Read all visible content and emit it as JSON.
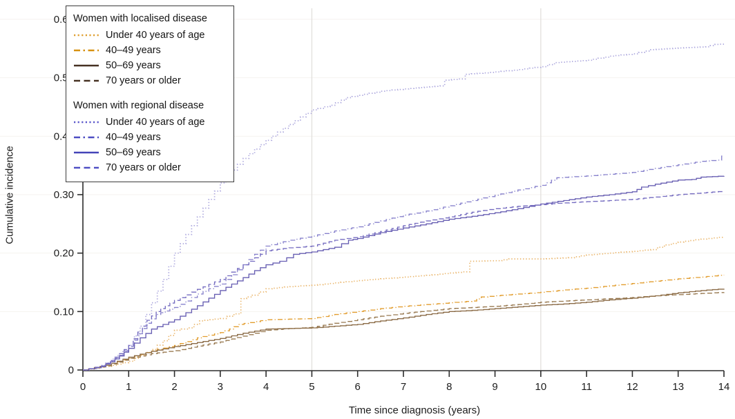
{
  "chart_data": {
    "type": "line",
    "title": "",
    "xlabel": "Time since diagnosis (years)",
    "ylabel": "Cumulative incidence",
    "xlim": [
      0,
      14
    ],
    "ylim": [
      0,
      0.6
    ],
    "x_ticks": [
      "0",
      "1",
      "2",
      "3",
      "4",
      "5",
      "6",
      "7",
      "8",
      "9",
      "10",
      "11",
      "12",
      "13",
      "14"
    ],
    "y_ticks": [
      {
        "v": 0,
        "label": "0"
      },
      {
        "v": 0.1,
        "label": "0.10"
      },
      {
        "v": 0.2,
        "label": "0.20"
      },
      {
        "v": 0.3,
        "label": "0.30"
      },
      {
        "v": 0.4,
        "label": "0.40"
      },
      {
        "v": 0.5,
        "label": "0.50"
      },
      {
        "v": 0.6,
        "label": "0.60"
      }
    ],
    "grid": {
      "vertical_lines_x": [
        5,
        10
      ],
      "vertical_color": "#e3e1de",
      "horizontal_lines_y": [
        0.1,
        0.2,
        0.3,
        0.4,
        0.5,
        0.6
      ],
      "horizontal_color": "#f4f2ef"
    },
    "axis_color": "#2b2b2b",
    "legend": {
      "position": "top-left",
      "groups": [
        {
          "title": "Women with localised disease"
        },
        {
          "title": "Women with regional disease"
        }
      ]
    },
    "series": [
      {
        "id": "localised-under-40",
        "group": 0,
        "label": "Under 40 years of age",
        "dash": "dotted",
        "color": "#eab66c",
        "legend_color": "#dfa032",
        "points": [
          [
            0,
            0
          ],
          [
            0.5,
            0.006
          ],
          [
            0.75,
            0.01
          ],
          [
            1,
            0.015
          ],
          [
            1.25,
            0.025
          ],
          [
            1.5,
            0.035
          ],
          [
            1.75,
            0.05
          ],
          [
            2,
            0.068
          ],
          [
            2.3,
            0.072
          ],
          [
            2.55,
            0.084
          ],
          [
            3,
            0.088
          ],
          [
            3.3,
            0.096
          ],
          [
            3.45,
            0.122
          ],
          [
            3.7,
            0.128
          ],
          [
            4,
            0.139
          ],
          [
            4.4,
            0.142
          ],
          [
            5,
            0.145
          ],
          [
            5.5,
            0.149
          ],
          [
            6,
            0.153
          ],
          [
            6.5,
            0.156
          ],
          [
            7,
            0.159
          ],
          [
            7.5,
            0.162
          ],
          [
            8,
            0.166
          ],
          [
            8.3,
            0.168
          ],
          [
            8.45,
            0.186
          ],
          [
            9,
            0.187
          ],
          [
            9.3,
            0.19
          ],
          [
            10,
            0.19
          ],
          [
            10.6,
            0.192
          ],
          [
            11,
            0.197
          ],
          [
            11.5,
            0.2
          ],
          [
            12,
            0.203
          ],
          [
            12.4,
            0.206
          ],
          [
            12.7,
            0.214
          ],
          [
            13,
            0.219
          ],
          [
            13.5,
            0.224
          ],
          [
            14,
            0.228
          ]
        ]
      },
      {
        "id": "localised-40-49",
        "group": 0,
        "label": "40–49 years",
        "dash": "dashdot",
        "color": "#e29d2e",
        "legend_color": "#d79110",
        "points": [
          [
            0,
            0
          ],
          [
            0.5,
            0.008
          ],
          [
            1,
            0.02
          ],
          [
            1.5,
            0.033
          ],
          [
            2,
            0.042
          ],
          [
            2.5,
            0.055
          ],
          [
            3,
            0.064
          ],
          [
            3.2,
            0.07
          ],
          [
            3.4,
            0.078
          ],
          [
            4,
            0.086
          ],
          [
            4.5,
            0.087
          ],
          [
            5,
            0.088
          ],
          [
            5.5,
            0.095
          ],
          [
            6,
            0.1
          ],
          [
            6.5,
            0.105
          ],
          [
            7,
            0.109
          ],
          [
            7.5,
            0.112
          ],
          [
            8,
            0.115
          ],
          [
            8.5,
            0.118
          ],
          [
            8.7,
            0.125
          ],
          [
            9,
            0.127
          ],
          [
            9.5,
            0.13
          ],
          [
            10,
            0.133
          ],
          [
            10.5,
            0.137
          ],
          [
            11,
            0.14
          ],
          [
            11.5,
            0.144
          ],
          [
            12,
            0.148
          ],
          [
            12.5,
            0.152
          ],
          [
            13,
            0.156
          ],
          [
            13.5,
            0.159
          ],
          [
            14,
            0.163
          ]
        ]
      },
      {
        "id": "localised-50-69",
        "group": 0,
        "label": "50–69 years",
        "dash": "solid",
        "color": "#8a6a45",
        "legend_color": "#463122",
        "points": [
          [
            0,
            0
          ],
          [
            0.5,
            0.008
          ],
          [
            1,
            0.022
          ],
          [
            1.5,
            0.032
          ],
          [
            2,
            0.04
          ],
          [
            2.5,
            0.047
          ],
          [
            3,
            0.054
          ],
          [
            3.5,
            0.063
          ],
          [
            4,
            0.07
          ],
          [
            4.5,
            0.071
          ],
          [
            5,
            0.072
          ],
          [
            5.5,
            0.075
          ],
          [
            6,
            0.078
          ],
          [
            6.5,
            0.084
          ],
          [
            7,
            0.089
          ],
          [
            7.5,
            0.095
          ],
          [
            8,
            0.1
          ],
          [
            8.5,
            0.102
          ],
          [
            9,
            0.105
          ],
          [
            9.5,
            0.108
          ],
          [
            10,
            0.111
          ],
          [
            10.5,
            0.113
          ],
          [
            11,
            0.116
          ],
          [
            11.5,
            0.12
          ],
          [
            12,
            0.123
          ],
          [
            12.5,
            0.127
          ],
          [
            13,
            0.132
          ],
          [
            13.5,
            0.136
          ],
          [
            14,
            0.139
          ]
        ]
      },
      {
        "id": "localised-70-plus",
        "group": 0,
        "label": "70 years or older",
        "dash": "dashed",
        "color": "#97784f",
        "legend_color": "#463122",
        "points": [
          [
            0,
            0
          ],
          [
            0.5,
            0.007
          ],
          [
            1,
            0.02
          ],
          [
            1.5,
            0.028
          ],
          [
            2,
            0.033
          ],
          [
            2.5,
            0.041
          ],
          [
            3,
            0.048
          ],
          [
            3.5,
            0.058
          ],
          [
            4,
            0.068
          ],
          [
            4.5,
            0.071
          ],
          [
            5,
            0.073
          ],
          [
            5.5,
            0.08
          ],
          [
            6,
            0.086
          ],
          [
            6.5,
            0.092
          ],
          [
            7,
            0.097
          ],
          [
            7.5,
            0.101
          ],
          [
            8,
            0.105
          ],
          [
            8.5,
            0.107
          ],
          [
            9,
            0.109
          ],
          [
            9.5,
            0.112
          ],
          [
            10,
            0.116
          ],
          [
            10.5,
            0.118
          ],
          [
            11,
            0.12
          ],
          [
            11.5,
            0.122
          ],
          [
            12,
            0.124
          ],
          [
            12.5,
            0.127
          ],
          [
            13,
            0.129
          ],
          [
            13.5,
            0.131
          ],
          [
            14,
            0.133
          ]
        ]
      },
      {
        "id": "regional-under-40",
        "group": 1,
        "label": "Under 40 years of age",
        "dash": "dotted",
        "color": "#aba6dd",
        "legend_color": "#5d59cb",
        "points": [
          [
            0,
            0
          ],
          [
            0.3,
            0.004
          ],
          [
            0.5,
            0.012
          ],
          [
            0.75,
            0.025
          ],
          [
            1,
            0.042
          ],
          [
            1.25,
            0.075
          ],
          [
            1.5,
            0.115
          ],
          [
            1.75,
            0.155
          ],
          [
            2,
            0.2
          ],
          [
            2.25,
            0.232
          ],
          [
            2.5,
            0.262
          ],
          [
            2.75,
            0.292
          ],
          [
            3,
            0.32
          ],
          [
            3.25,
            0.342
          ],
          [
            3.5,
            0.362
          ],
          [
            3.75,
            0.378
          ],
          [
            4,
            0.393
          ],
          [
            4.25,
            0.407
          ],
          [
            4.5,
            0.42
          ],
          [
            4.75,
            0.433
          ],
          [
            5,
            0.445
          ],
          [
            5.4,
            0.453
          ],
          [
            5.75,
            0.466
          ],
          [
            6,
            0.47
          ],
          [
            6.5,
            0.477
          ],
          [
            7,
            0.481
          ],
          [
            7.8,
            0.486
          ],
          [
            7.9,
            0.496
          ],
          [
            8.2,
            0.498
          ],
          [
            8.35,
            0.506
          ],
          [
            9,
            0.51
          ],
          [
            9.5,
            0.514
          ],
          [
            10,
            0.519
          ],
          [
            10.3,
            0.526
          ],
          [
            11,
            0.53
          ],
          [
            11.5,
            0.537
          ],
          [
            12,
            0.541
          ],
          [
            12.4,
            0.548
          ],
          [
            13,
            0.551
          ],
          [
            13.6,
            0.553
          ],
          [
            13.8,
            0.557
          ],
          [
            14,
            0.558
          ]
        ]
      },
      {
        "id": "regional-40-49",
        "group": 1,
        "label": "40–49 years",
        "dash": "dashdot",
        "color": "#8680cc",
        "legend_color": "#4c4cc2",
        "points": [
          [
            0,
            0
          ],
          [
            0.4,
            0.006
          ],
          [
            0.6,
            0.015
          ],
          [
            0.8,
            0.025
          ],
          [
            1,
            0.04
          ],
          [
            1.2,
            0.062
          ],
          [
            1.4,
            0.08
          ],
          [
            1.6,
            0.095
          ],
          [
            1.8,
            0.101
          ],
          [
            2,
            0.107
          ],
          [
            2.25,
            0.118
          ],
          [
            2.5,
            0.13
          ],
          [
            2.75,
            0.139
          ],
          [
            3,
            0.147
          ],
          [
            3.25,
            0.163
          ],
          [
            3.5,
            0.18
          ],
          [
            3.75,
            0.198
          ],
          [
            4,
            0.212
          ],
          [
            4.5,
            0.222
          ],
          [
            5,
            0.229
          ],
          [
            5.5,
            0.238
          ],
          [
            6,
            0.245
          ],
          [
            6.5,
            0.255
          ],
          [
            7,
            0.265
          ],
          [
            7.5,
            0.272
          ],
          [
            8,
            0.281
          ],
          [
            8.5,
            0.29
          ],
          [
            9,
            0.299
          ],
          [
            9.5,
            0.308
          ],
          [
            10,
            0.316
          ],
          [
            10.35,
            0.329
          ],
          [
            11,
            0.332
          ],
          [
            11.5,
            0.335
          ],
          [
            12,
            0.338
          ],
          [
            12.5,
            0.345
          ],
          [
            13,
            0.351
          ],
          [
            13.5,
            0.357
          ],
          [
            13.85,
            0.359
          ],
          [
            13.95,
            0.366
          ],
          [
            14,
            0.366
          ]
        ]
      },
      {
        "id": "regional-50-69",
        "group": 1,
        "label": "50–69 years",
        "dash": "solid",
        "color": "#675eb2",
        "legend_color": "#4444b8",
        "points": [
          [
            0,
            0
          ],
          [
            0.4,
            0.006
          ],
          [
            0.6,
            0.014
          ],
          [
            0.8,
            0.024
          ],
          [
            1,
            0.037
          ],
          [
            1.25,
            0.055
          ],
          [
            1.5,
            0.07
          ],
          [
            1.75,
            0.078
          ],
          [
            2,
            0.086
          ],
          [
            2.25,
            0.098
          ],
          [
            2.5,
            0.11
          ],
          [
            2.75,
            0.123
          ],
          [
            3,
            0.136
          ],
          [
            3.25,
            0.147
          ],
          [
            3.5,
            0.158
          ],
          [
            3.75,
            0.17
          ],
          [
            4,
            0.18
          ],
          [
            4.3,
            0.186
          ],
          [
            4.6,
            0.198
          ],
          [
            5,
            0.202
          ],
          [
            5.5,
            0.21
          ],
          [
            5.8,
            0.222
          ],
          [
            6,
            0.225
          ],
          [
            6.5,
            0.235
          ],
          [
            7,
            0.243
          ],
          [
            7.5,
            0.25
          ],
          [
            8,
            0.258
          ],
          [
            8.5,
            0.263
          ],
          [
            9,
            0.269
          ],
          [
            9.5,
            0.276
          ],
          [
            10,
            0.284
          ],
          [
            10.5,
            0.29
          ],
          [
            11,
            0.296
          ],
          [
            11.5,
            0.3
          ],
          [
            12,
            0.305
          ],
          [
            12.2,
            0.313
          ],
          [
            12.5,
            0.318
          ],
          [
            13,
            0.325
          ],
          [
            13.3,
            0.326
          ],
          [
            13.5,
            0.33
          ],
          [
            14,
            0.332
          ]
        ]
      },
      {
        "id": "regional-70-plus",
        "group": 1,
        "label": "70 years or older",
        "dash": "dashed",
        "color": "#746bc0",
        "legend_color": "#4f4fc4",
        "points": [
          [
            0,
            0
          ],
          [
            0.4,
            0.007
          ],
          [
            0.6,
            0.016
          ],
          [
            0.8,
            0.028
          ],
          [
            1,
            0.042
          ],
          [
            1.2,
            0.065
          ],
          [
            1.4,
            0.085
          ],
          [
            1.6,
            0.1
          ],
          [
            1.8,
            0.11
          ],
          [
            2,
            0.119
          ],
          [
            2.5,
            0.138
          ],
          [
            3,
            0.155
          ],
          [
            3.5,
            0.18
          ],
          [
            4,
            0.204
          ],
          [
            4.5,
            0.209
          ],
          [
            5,
            0.212
          ],
          [
            5.5,
            0.222
          ],
          [
            6,
            0.228
          ],
          [
            6.5,
            0.237
          ],
          [
            7,
            0.247
          ],
          [
            7.5,
            0.255
          ],
          [
            8,
            0.262
          ],
          [
            8.5,
            0.27
          ],
          [
            9,
            0.276
          ],
          [
            9.5,
            0.28
          ],
          [
            10,
            0.283
          ],
          [
            10.5,
            0.286
          ],
          [
            11,
            0.288
          ],
          [
            11.5,
            0.29
          ],
          [
            12,
            0.292
          ],
          [
            12.5,
            0.296
          ],
          [
            13,
            0.3
          ],
          [
            13.5,
            0.303
          ],
          [
            14,
            0.306
          ]
        ]
      }
    ]
  }
}
